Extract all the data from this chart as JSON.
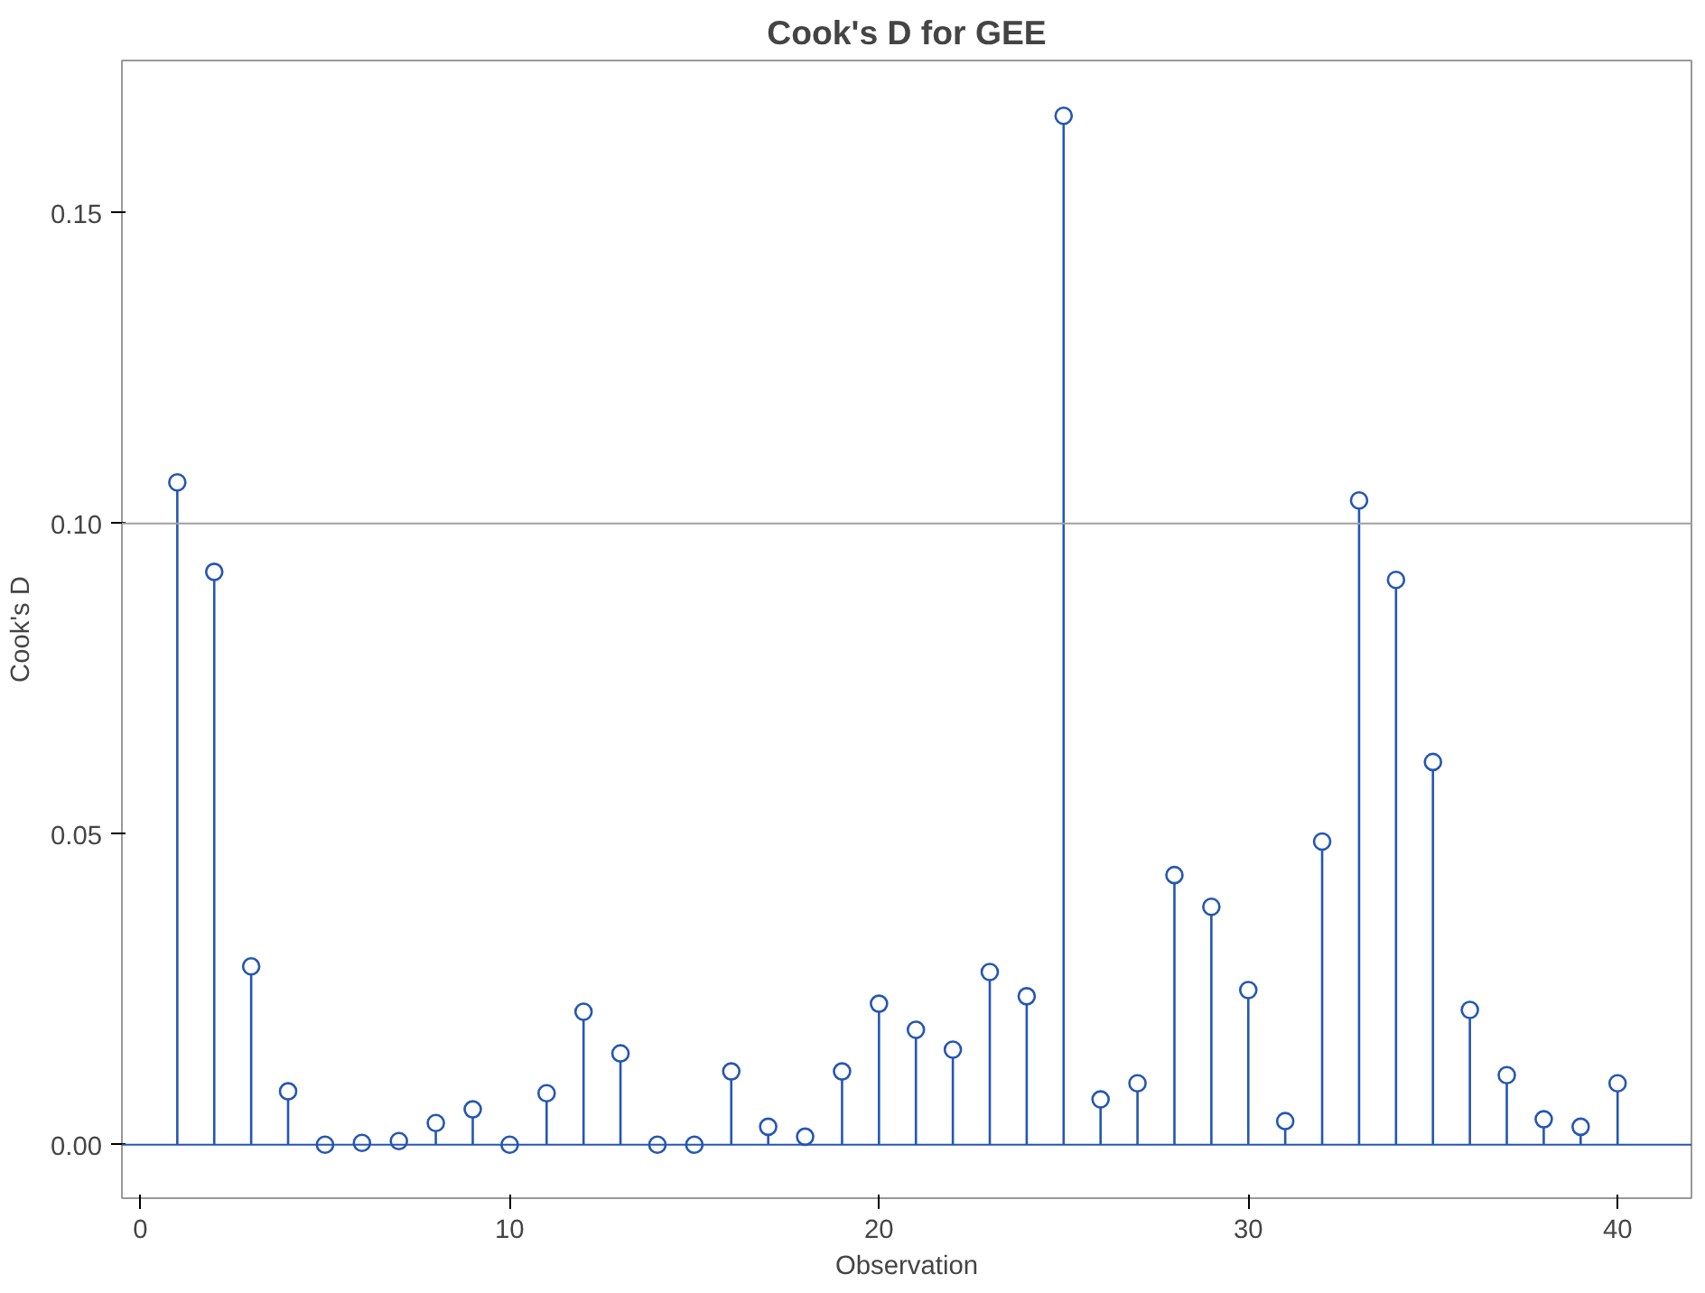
{
  "chart_data": {
    "type": "lollipop",
    "title": "Cook's D for GEE",
    "xlabel": "Observation",
    "ylabel": "Cook's D",
    "x": [
      1,
      2,
      3,
      4,
      5,
      6,
      7,
      8,
      9,
      10,
      11,
      12,
      13,
      14,
      15,
      16,
      17,
      18,
      19,
      20,
      21,
      22,
      23,
      24,
      25,
      26,
      27,
      28,
      29,
      30,
      31,
      32,
      33,
      34,
      35,
      36,
      37,
      38,
      39,
      40
    ],
    "series": [
      {
        "color": "#2456b4",
        "values": [
          0.1066,
          0.0922,
          0.0287,
          0.0086,
          0.0,
          0.0003,
          0.0006,
          0.0035,
          0.0057,
          0.0,
          0.0083,
          0.0214,
          0.0147,
          0.0,
          0.0,
          0.0118,
          0.0029,
          0.0013,
          0.0118,
          0.0227,
          0.0185,
          0.0153,
          0.0278,
          0.0239,
          0.1656,
          0.0073,
          0.0099,
          0.0434,
          0.0383,
          0.0249,
          0.0038,
          0.0488,
          0.1037,
          0.0909,
          0.0616,
          0.0217,
          0.0112,
          0.0041,
          0.0029,
          0.0099
        ]
      }
    ],
    "xlim": [
      -0.5,
      42
    ],
    "ylim": [
      -0.0086,
      0.1745
    ],
    "xticks": [
      0,
      10,
      20,
      30,
      40
    ],
    "yticks": [
      {
        "value": 0,
        "label": "0.00"
      },
      {
        "value": 0.05,
        "label": "0.05"
      },
      {
        "value": 0.1,
        "label": "0.10"
      },
      {
        "value": 0.15,
        "label": "0.15"
      }
    ],
    "ref_lines": [
      {
        "axis": "y",
        "value": 0.1,
        "color": "#a0a0a0"
      },
      {
        "axis": "y",
        "value": 0,
        "color": "#2456b4"
      }
    ],
    "marker": "circle",
    "grid": false
  }
}
